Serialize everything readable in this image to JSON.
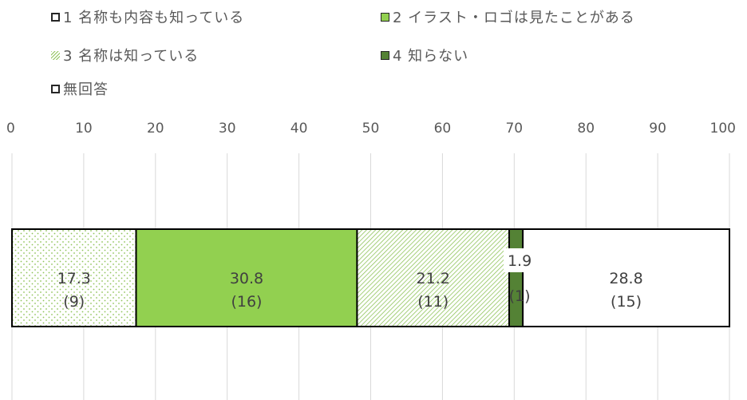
{
  "chart_data": {
    "type": "bar",
    "orientation": "horizontal",
    "stacked": true,
    "xlim": [
      0,
      100
    ],
    "x_ticks": [
      "0",
      "10",
      "20",
      "30",
      "40",
      "50",
      "60",
      "70",
      "80",
      "90",
      "100"
    ],
    "grid": true,
    "legend_position": "top",
    "series": [
      {
        "name": "1 名称も内容も知っている",
        "value": 17.3,
        "count_label": "(9)",
        "pattern": "dots",
        "color": "#8fc45a"
      },
      {
        "name": "2 イラスト・ロゴは見たことがある",
        "value": 30.8,
        "count_label": "(16)",
        "pattern": "solid",
        "color": "#92d050"
      },
      {
        "name": "3 名称は知っている",
        "value": 21.2,
        "count_label": "(11)",
        "pattern": "diagonal",
        "color": "#8fc45a"
      },
      {
        "name": "4 知らない",
        "value": 1.9,
        "count_label": "(1)",
        "pattern": "solid",
        "color": "#548235"
      },
      {
        "name": "無回答",
        "value": 28.8,
        "count_label": "(15)",
        "pattern": "solid",
        "color": "#ffffff"
      }
    ]
  }
}
